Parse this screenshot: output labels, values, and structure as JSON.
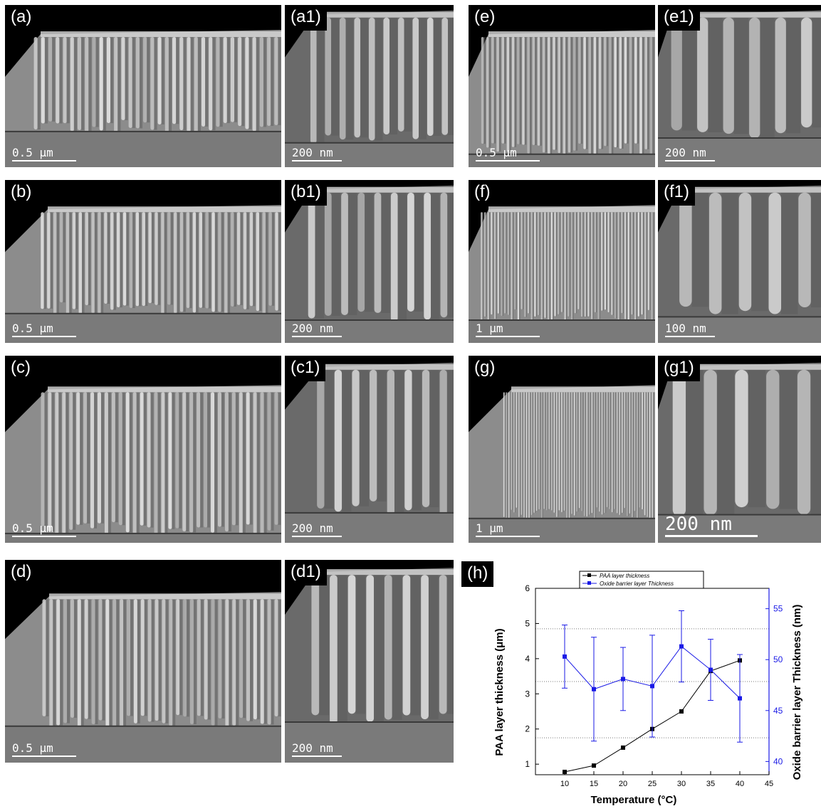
{
  "panels": {
    "a": {
      "label": "(a)",
      "scale": "0.5 μm"
    },
    "a1": {
      "label": "(a1)",
      "scale": "200 nm"
    },
    "b": {
      "label": "(b)",
      "scale": "0.5 μm"
    },
    "b1": {
      "label": "(b1)",
      "scale": "200 nm"
    },
    "c": {
      "label": "(c)",
      "scale": "0.5 μm"
    },
    "c1": {
      "label": "(c1)",
      "scale": "200 nm"
    },
    "d": {
      "label": "(d)",
      "scale": "0.5 μm"
    },
    "d1": {
      "label": "(d1)",
      "scale": "200 nm"
    },
    "e": {
      "label": "(e)",
      "scale": "0.5 μm"
    },
    "e1": {
      "label": "(e1)",
      "scale": "200 nm"
    },
    "f": {
      "label": "(f)",
      "scale": "1 μm"
    },
    "f1": {
      "label": "(f1)",
      "scale": "100 nm"
    },
    "g": {
      "label": "(g)",
      "scale": "1 μm"
    },
    "g1": {
      "label": "(g1)",
      "scale": "200 nm"
    },
    "h": {
      "label": "(h)"
    }
  },
  "chart_data": {
    "type": "line",
    "xlabel": "Temperature (°C)",
    "ylabel": "PAA  layer thickness (μm)",
    "y2label": "Oxide barrier layer Thickness (nm)",
    "xlim": [
      5,
      45
    ],
    "ylim": [
      0.7,
      6
    ],
    "y2lim": [
      38.7,
      57
    ],
    "x_ticks": [
      10,
      15,
      20,
      25,
      30,
      35,
      40,
      45
    ],
    "y_ticks": [
      1,
      2,
      3,
      4,
      5,
      6
    ],
    "y2_ticks": [
      40,
      45,
      50,
      55
    ],
    "grid": "horizontal dotted",
    "legend_position": "top",
    "legend": [
      "PAA  layer thickness",
      "Oxide barrier layer Thickness"
    ],
    "series": [
      {
        "name": "PAA  layer thickness",
        "axis": "left",
        "color": "#000000",
        "x": [
          10,
          15,
          20,
          25,
          30,
          35,
          40
        ],
        "y": [
          0.78,
          0.96,
          1.47,
          2.0,
          2.5,
          3.65,
          3.95
        ]
      },
      {
        "name": "Oxide barrier layer Thickness",
        "axis": "right",
        "color": "#1a1ae6",
        "x": [
          10,
          15,
          20,
          25,
          30,
          35,
          40
        ],
        "y": [
          50.3,
          47.1,
          48.1,
          47.4,
          51.3,
          49.0,
          46.2
        ],
        "err": [
          3.1,
          5.1,
          3.1,
          5.0,
          3.5,
          3.0,
          4.3
        ]
      }
    ]
  }
}
